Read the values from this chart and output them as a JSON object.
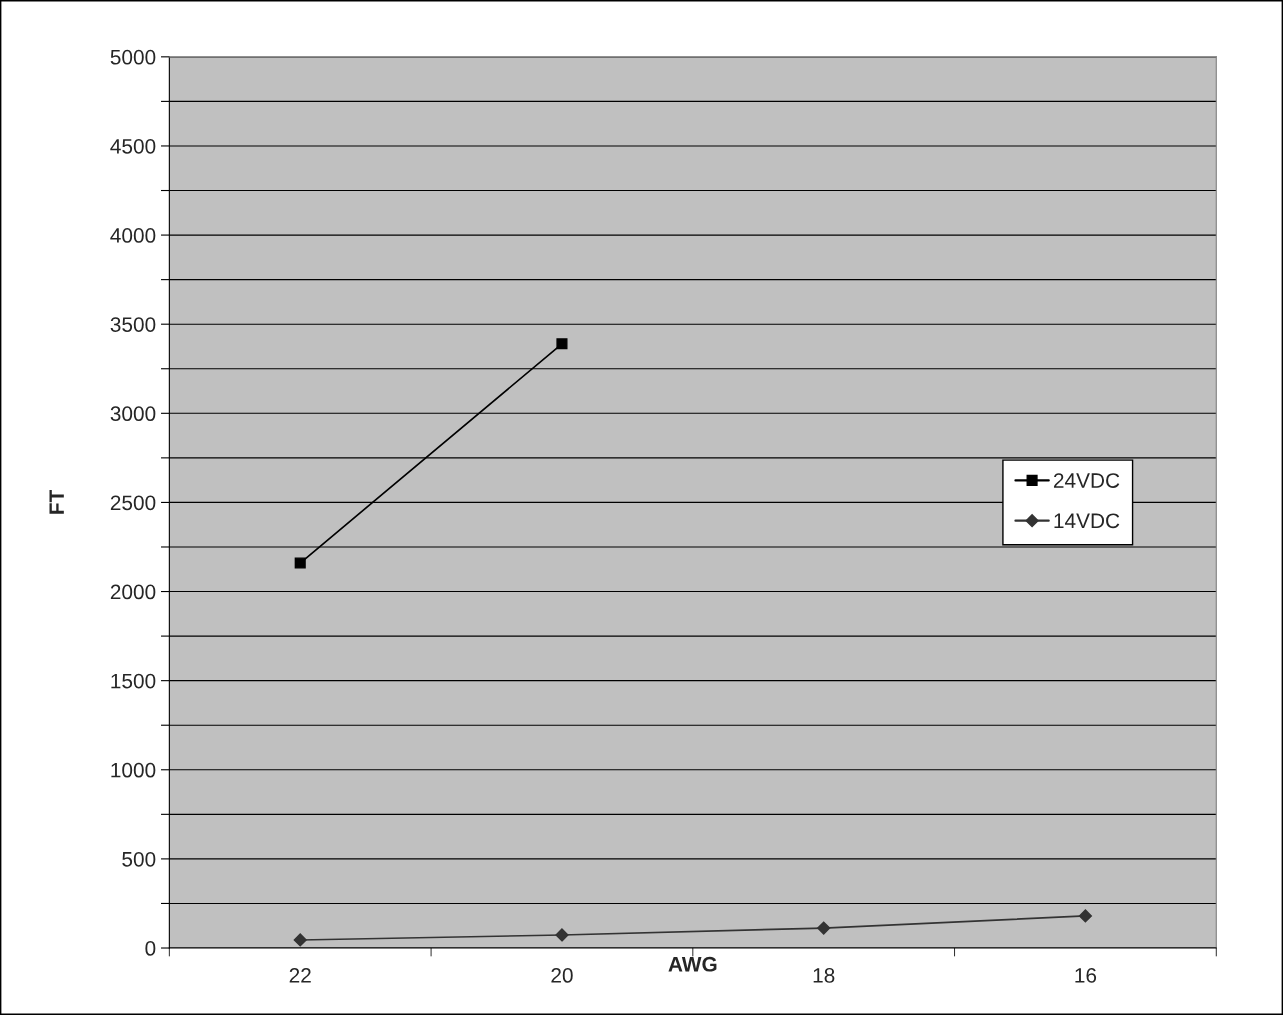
{
  "chart_data": {
    "type": "line",
    "xlabel": "AWG",
    "ylabel": "FT",
    "categories": [
      "22",
      "20",
      "18",
      "16"
    ],
    "series": [
      {
        "name": "24VDC",
        "color": "#000000",
        "marker": "square",
        "values": [
          2160,
          3390,
          null,
          null
        ]
      },
      {
        "name": "14VDC",
        "color": "#333333",
        "marker": "diamond",
        "values": [
          45,
          73,
          112,
          180
        ]
      }
    ],
    "ylim": [
      0,
      5000
    ],
    "yticks": [
      0,
      {
        "value": 250,
        "label": null
      },
      500,
      {
        "value": 750,
        "label": null
      },
      1000,
      {
        "value": 1250,
        "label": null
      },
      1500,
      {
        "value": 1750,
        "label": null
      },
      2000,
      {
        "value": 2250,
        "label": null
      },
      2500,
      {
        "value": 2750,
        "label": null
      },
      3000,
      {
        "value": 3250,
        "label": null
      },
      3500,
      {
        "value": 3750,
        "label": null
      },
      4000,
      {
        "value": 4250,
        "label": null
      },
      4500,
      {
        "value": 4750,
        "label": null
      },
      5000
    ],
    "grid": "y",
    "legend": "right",
    "line_style": "solid"
  }
}
